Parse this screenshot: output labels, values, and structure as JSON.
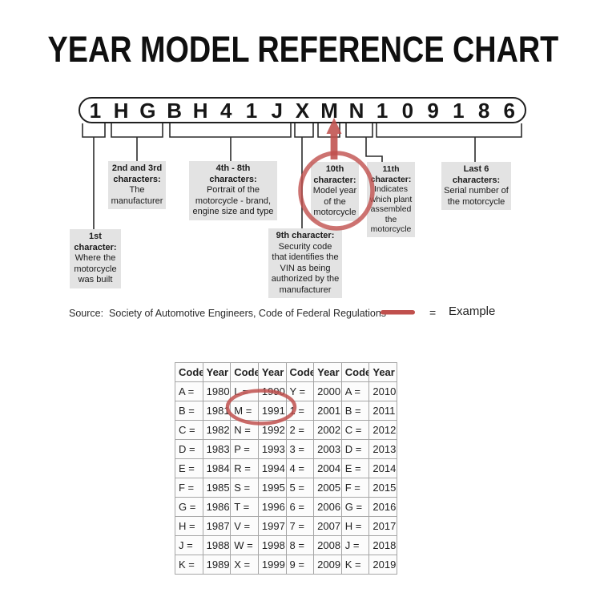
{
  "title": "YEAR MODEL REFERENCE CHART",
  "vin": {
    "characters": [
      "1",
      "H",
      "G",
      "B",
      "H",
      "4",
      "1",
      "J",
      "X",
      "M",
      "N",
      "1",
      "0",
      "9",
      "1",
      "8",
      "6"
    ]
  },
  "callouts": {
    "first": {
      "head": "1st\ncharacter:",
      "body": "Where the\nmotorcycle\nwas built"
    },
    "second_third": {
      "head": "2nd and 3rd\ncharacters:",
      "body": "The\nmanufacturer"
    },
    "fourth_eighth": {
      "head": "4th - 8th\ncharacters:",
      "body": "Portrait of the\nmotorcycle - brand,\nengine size and type"
    },
    "ninth": {
      "head": "9th character:",
      "body": "Security code\nthat identifies the\nVIN as being\nauthorized by the\nmanufacturer"
    },
    "tenth": {
      "head": "10th\ncharacter:",
      "body": "Model year\nof the\nmotorcycle"
    },
    "eleventh": {
      "head": "11th\ncharacter:",
      "body": "Indicates\nwhich plant\nassembled\nthe\nmotorcycle"
    },
    "last_six": {
      "head": "Last 6\ncharacters:",
      "body": "Serial number of\nthe motorcycle"
    }
  },
  "source_line": "Source:  Society of Automotive Engineers, Code of Federal Regulations",
  "legend": {
    "equals": "=",
    "label": "Example"
  },
  "colors": {
    "example_red": "#c0504d",
    "callout_bg": "#e3e3e3",
    "line": "#2c2c2c"
  },
  "table": {
    "headers": [
      "Code",
      "Year",
      "Code",
      "Year",
      "Code",
      "Year",
      "Code",
      "Year"
    ],
    "rows": [
      [
        "A =",
        "1980",
        "L =",
        "1990",
        "Y =",
        "2000",
        "A =",
        "2010"
      ],
      [
        "B =",
        "1981",
        "M =",
        "1991",
        "1 =",
        "2001",
        "B =",
        "2011"
      ],
      [
        "C =",
        "1982",
        "N =",
        "1992",
        "2 =",
        "2002",
        "C =",
        "2012"
      ],
      [
        "D =",
        "1983",
        "P =",
        "1993",
        "3 =",
        "2003",
        "D =",
        "2013"
      ],
      [
        "E =",
        "1984",
        "R =",
        "1994",
        "4 =",
        "2004",
        "E =",
        "2014"
      ],
      [
        "F =",
        "1985",
        "S =",
        "1995",
        "5 =",
        "2005",
        "F =",
        "2015"
      ],
      [
        "G =",
        "1986",
        "T =",
        "1996",
        "6 =",
        "2006",
        "G =",
        "2016"
      ],
      [
        "H =",
        "1987",
        "V =",
        "1997",
        "7 =",
        "2007",
        "H =",
        "2017"
      ],
      [
        "J =",
        "1988",
        "W =",
        "1998",
        "8 =",
        "2008",
        "J =",
        "2018"
      ],
      [
        "K =",
        "1989",
        "X =",
        "1999",
        "9 =",
        "2009",
        "K =",
        "2019"
      ]
    ],
    "highlighted_cell": "M = 1991"
  }
}
